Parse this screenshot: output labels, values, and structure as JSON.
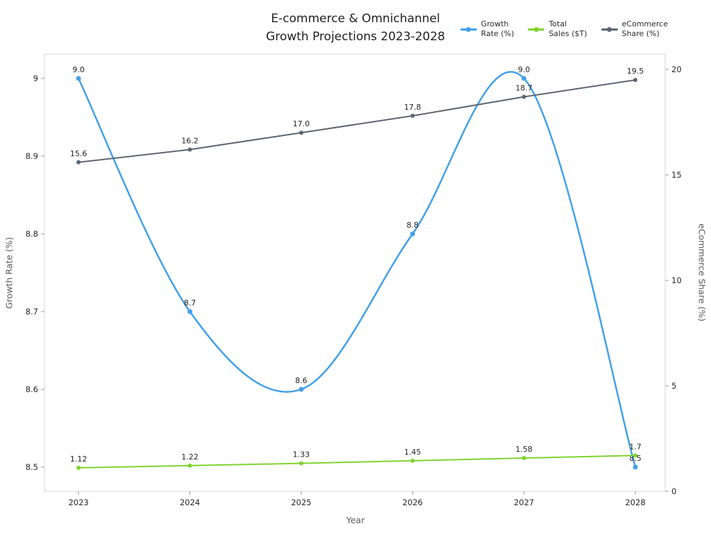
{
  "chart": {
    "title": "E-commerce & Omnichannel\nGrowth Projections 2023-2028",
    "xlabel": "Year",
    "ylabel_left": "Growth Rate (%)",
    "ylabel_right": "eCommerce Share (%)"
  },
  "chart_data": {
    "type": "line",
    "title": "E-commerce & Omnichannel Growth Projections 2023-2028",
    "x": [
      2023,
      2024,
      2025,
      2026,
      2027,
      2028
    ],
    "series": [
      {
        "name": "Growth Rate (%)",
        "legend_label": "Growth\nRate (%)",
        "axis": "left",
        "color": "#42a0e6",
        "smooth": true,
        "line_width": 2.5,
        "marker_radius": 3.5,
        "values": [
          9.0,
          8.7,
          8.6,
          8.8,
          9.0,
          8.5
        ],
        "labels": [
          "9.0",
          "8.7",
          "8.6",
          "8.8",
          "9.0",
          "8.5"
        ]
      },
      {
        "name": "Total Sales ($T)",
        "legend_label": "Total\nSales ($T)",
        "axis": "right",
        "color": "#7fd32f",
        "smooth": false,
        "line_width": 2,
        "marker_radius": 3,
        "values": [
          1.12,
          1.22,
          1.33,
          1.45,
          1.58,
          1.7
        ],
        "labels": [
          "1.12",
          "1.22",
          "1.33",
          "1.45",
          "1.58",
          "1.7"
        ]
      },
      {
        "name": "eCommerce Share (%)",
        "legend_label": "eCommerce\nShare (%)",
        "axis": "right",
        "color": "#5a6672",
        "smooth": false,
        "line_width": 2,
        "marker_radius": 3,
        "values": [
          15.6,
          16.2,
          17.0,
          17.8,
          18.7,
          19.5
        ],
        "labels": [
          "15.6",
          "16.2",
          "17.0",
          "17.8",
          "18.7",
          "19.5"
        ]
      }
    ],
    "axes": {
      "x": {
        "ticks": [
          2023,
          2024,
          2025,
          2026,
          2027,
          2028
        ],
        "tick_labels": [
          "2023",
          "2024",
          "2025",
          "2026",
          "2027",
          "2028"
        ],
        "range": [
          2022.694,
          2028.268
        ]
      },
      "left": {
        "ticks": [
          8.5,
          8.6,
          8.7,
          8.8,
          8.9,
          9.0
        ],
        "tick_labels": [
          "8.5",
          "8.6",
          "8.7",
          "8.8",
          "8.9",
          "9"
        ],
        "range": [
          8.46875,
          9.03125
        ]
      },
      "right": {
        "ticks": [
          0,
          5,
          10,
          15,
          20
        ],
        "tick_labels": [
          "0",
          "5",
          "10",
          "15",
          "20"
        ],
        "range": [
          0,
          20.724
        ]
      }
    },
    "legend_position": "top-right",
    "grid": false
  }
}
